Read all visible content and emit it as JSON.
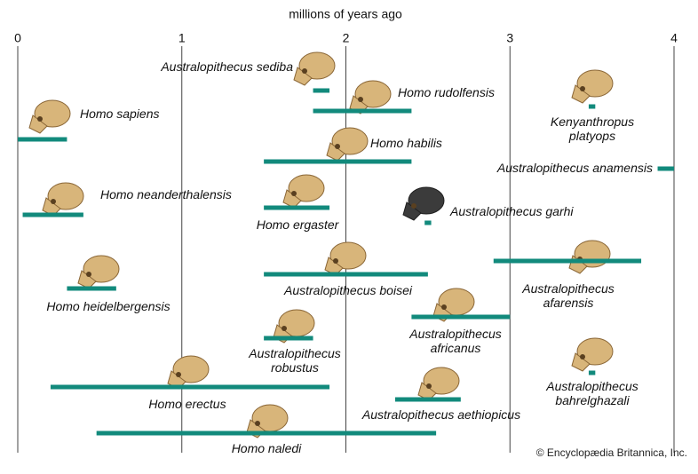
{
  "chart_data": {
    "type": "range",
    "xlabel": "millions of years ago",
    "xlim": [
      0,
      4
    ],
    "xticks": [
      0,
      1,
      2,
      3,
      4
    ],
    "color": "#128a7c",
    "items": [
      {
        "name": "Australopithecus sediba",
        "start": 1.8,
        "end": 1.9
      },
      {
        "name": "Homo rudolfensis",
        "start": 1.8,
        "end": 2.4
      },
      {
        "name": "Kenyanthropus platyops",
        "start": 3.48,
        "end": 3.52
      },
      {
        "name": "Homo sapiens",
        "start": 0,
        "end": 0.3
      },
      {
        "name": "Homo habilis",
        "start": 1.5,
        "end": 2.4
      },
      {
        "name": "Australopithecus anamensis",
        "start": 3.9,
        "end": 4.0
      },
      {
        "name": "Homo neanderthalensis",
        "start": 0.03,
        "end": 0.4
      },
      {
        "name": "Homo ergaster",
        "start": 1.5,
        "end": 1.9
      },
      {
        "name": "Australopithecus garhi",
        "start": 2.48,
        "end": 2.52
      },
      {
        "name": "Australopithecus boisei",
        "start": 1.5,
        "end": 2.5
      },
      {
        "name": "Australopithecus afarensis",
        "start": 2.9,
        "end": 3.8
      },
      {
        "name": "Homo heidelbergensis",
        "start": 0.3,
        "end": 0.6
      },
      {
        "name": "Australopithecus africanus",
        "start": 2.4,
        "end": 3.0
      },
      {
        "name": "Australopithecus robustus",
        "start": 1.5,
        "end": 1.8
      },
      {
        "name": "Australopithecus bahrelghazali",
        "start": 3.48,
        "end": 3.52
      },
      {
        "name": "Homo erectus",
        "start": 0.2,
        "end": 1.9
      },
      {
        "name": "Australopithecus aethiopicus",
        "start": 2.3,
        "end": 2.7
      },
      {
        "name": "Homo naledi",
        "start": 0.48,
        "end": 2.55
      }
    ],
    "source": "© Encyclopædia Britannica, Inc."
  }
}
